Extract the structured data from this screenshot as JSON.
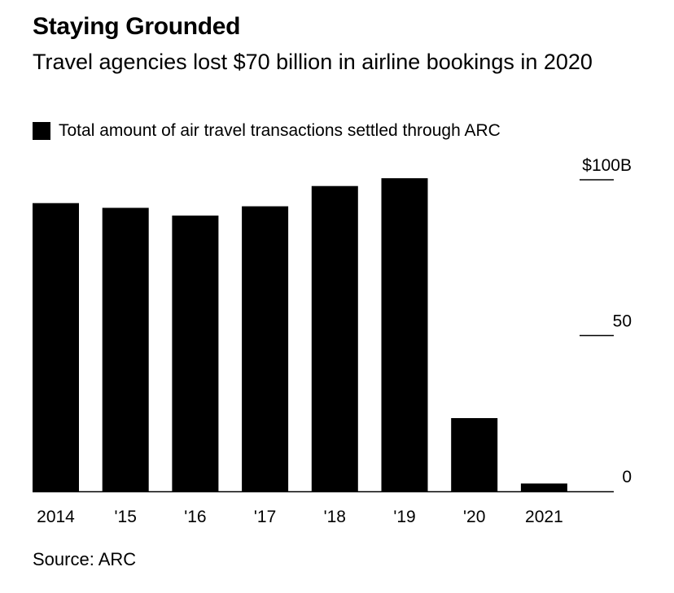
{
  "header": {
    "title": "Staying Grounded",
    "subtitle": "Travel agencies lost $70 billion in airline bookings in 2020"
  },
  "legend": {
    "label": "Total amount of air travel transactions settled through ARC",
    "swatch_color": "#000000"
  },
  "footer": {
    "source": "Source: ARC"
  },
  "chart_data": {
    "type": "bar",
    "categories": [
      "2014",
      "'15",
      "'16",
      "'17",
      "'18",
      "'19",
      "'20",
      "2021"
    ],
    "series": [
      {
        "name": "Total amount of air travel transactions settled through ARC",
        "values": [
          92.5,
          91,
          88.5,
          91.5,
          98,
          100.5,
          23.5,
          2.5
        ],
        "color": "#000000"
      }
    ],
    "y_ticks": [
      {
        "value": 100,
        "label": "$100B"
      },
      {
        "value": 50,
        "label": "50"
      },
      {
        "value": 0,
        "label": "0"
      }
    ],
    "ylim": [
      0,
      100
    ],
    "y_axis_side": "right",
    "grid": false,
    "legend_position": "top-left"
  }
}
